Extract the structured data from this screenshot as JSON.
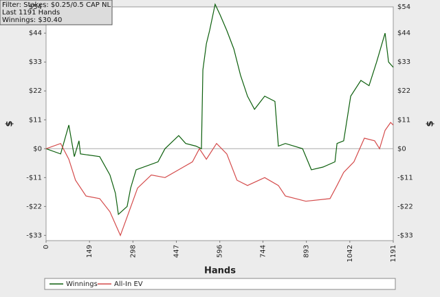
{
  "chart_data": {
    "type": "line",
    "info": [
      "Filter: Stakes: $0.25/0.5 CAP NL",
      "Last  1191 Hands",
      "Winnings: $30.40"
    ],
    "xlabel": "Hands",
    "ylabel": "$",
    "y2label": "$",
    "xlim": [
      0,
      1191
    ],
    "xticks": [
      0,
      149,
      298,
      447,
      596,
      744,
      893,
      1042,
      1191
    ],
    "ylim": [
      -35,
      54
    ],
    "yticks": [
      {
        "value": -33,
        "label": "-$33"
      },
      {
        "value": -22,
        "label": "-$22"
      },
      {
        "value": -11,
        "label": "-$11"
      },
      {
        "value": 0,
        "label": "$0"
      },
      {
        "value": 11,
        "label": "$11"
      },
      {
        "value": 22,
        "label": "$22"
      },
      {
        "value": 33,
        "label": "$33"
      },
      {
        "value": 44,
        "label": "$44"
      },
      {
        "value": 54,
        "label": "$54"
      }
    ],
    "grid": false,
    "legend": "bottom",
    "series": [
      {
        "name": "Winnings",
        "color": "#0b5e0b",
        "x": [
          0,
          50,
          78,
          97,
          113,
          118,
          184,
          219,
          238,
          248,
          278,
          290,
          309,
          384,
          408,
          455,
          479,
          514,
          533,
          538,
          550,
          561,
          580,
          597,
          620,
          644,
          667,
          691,
          715,
          750,
          785,
          797,
          821,
          880,
          910,
          950,
          991,
          998,
          1021,
          1045,
          1080,
          1108,
          1134,
          1163,
          1175,
          1191
        ],
        "values": [
          0,
          -2,
          9,
          -3,
          3,
          -2,
          -3,
          -10,
          -17,
          -25,
          -22,
          -15,
          -8,
          -5,
          0,
          5,
          2,
          1,
          0,
          30,
          40,
          45,
          55,
          51,
          45,
          38,
          28,
          20,
          15,
          20,
          18,
          1,
          2,
          0,
          -8,
          -7,
          -5,
          2,
          3,
          20,
          26,
          24,
          33,
          44,
          33,
          31
        ]
      },
      {
        "name": "All-In EV",
        "color": "#d44a4a",
        "x": [
          0,
          50,
          78,
          101,
          137,
          184,
          219,
          243,
          255,
          278,
          314,
          361,
          408,
          455,
          502,
          526,
          550,
          585,
          620,
          655,
          691,
          750,
          797,
          821,
          891,
          974,
          998,
          1021,
          1056,
          1092,
          1127,
          1144,
          1163,
          1182,
          1191
        ],
        "values": [
          0,
          2,
          -4,
          -12,
          -18,
          -19,
          -24,
          -30,
          -33,
          -26,
          -15,
          -10,
          -11,
          -8,
          -5,
          0,
          -4,
          2,
          -2,
          -12,
          -14,
          -11,
          -14,
          -18,
          -20,
          -19,
          -14,
          -9,
          -5,
          4,
          3,
          0,
          7,
          10,
          9
        ]
      }
    ]
  }
}
